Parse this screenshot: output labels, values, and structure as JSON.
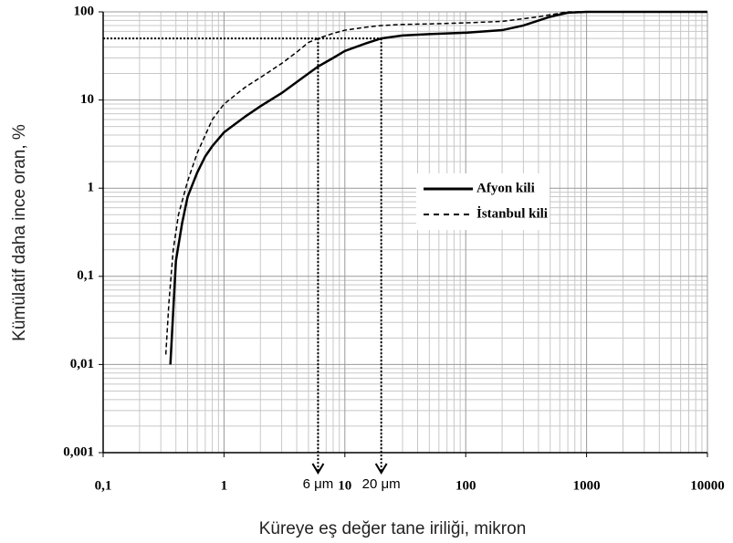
{
  "chart_data": {
    "type": "line",
    "x_label": "Küreye eş değer tane iriliği, mikron",
    "y_label": "Kümülatif daha ince oran, %",
    "log_x": true,
    "log_y": true,
    "grid": true,
    "legend": "right",
    "xlim": [
      0.1,
      10000
    ],
    "xticks": [
      {
        "value": 0.1,
        "label": "0,1"
      },
      1,
      10,
      100,
      1000,
      10000
    ],
    "ylim": [
      0.001,
      100
    ],
    "yticks": [
      {
        "value": 0.001,
        "label": "0,001"
      },
      {
        "value": 0.01,
        "label": "0,01"
      },
      {
        "value": 0.1,
        "label": "0,1"
      },
      1,
      10,
      100
    ],
    "series": [
      {
        "name": "Afyon kili",
        "color": "#000000",
        "dash": "solid",
        "x": [
          0.36,
          0.4,
          0.45,
          0.5,
          0.6,
          0.7,
          0.8,
          1,
          1.5,
          2,
          3,
          4,
          5,
          6,
          8,
          10,
          15,
          20,
          30,
          50,
          100,
          200,
          300,
          500,
          700,
          1000,
          10000
        ],
        "values": [
          0.01,
          0.15,
          0.4,
          0.8,
          1.5,
          2.3,
          3,
          4.3,
          6.5,
          8.5,
          12,
          16,
          20,
          24,
          30,
          36,
          44,
          50,
          54,
          56,
          58,
          62,
          70,
          88,
          98,
          100,
          100
        ]
      },
      {
        "name": "İstanbul kili",
        "color": "#000000",
        "dash": "dashed",
        "x": [
          0.33,
          0.35,
          0.38,
          0.42,
          0.5,
          0.6,
          0.8,
          1,
          1.5,
          2,
          3,
          4,
          5,
          6,
          8,
          10,
          15,
          20,
          30,
          50,
          100,
          200,
          400,
          700,
          1000,
          10000
        ],
        "values": [
          0.013,
          0.05,
          0.2,
          0.5,
          1.2,
          2.5,
          6,
          9,
          14,
          18,
          26,
          35,
          45,
          50,
          57,
          62,
          67,
          70,
          72,
          73,
          75,
          78,
          88,
          100,
          100,
          100
        ]
      }
    ],
    "reference_y": 50,
    "annotations": [
      {
        "text": "6 μm",
        "x": 6
      },
      {
        "text": "20 μm",
        "x": 20
      }
    ]
  }
}
